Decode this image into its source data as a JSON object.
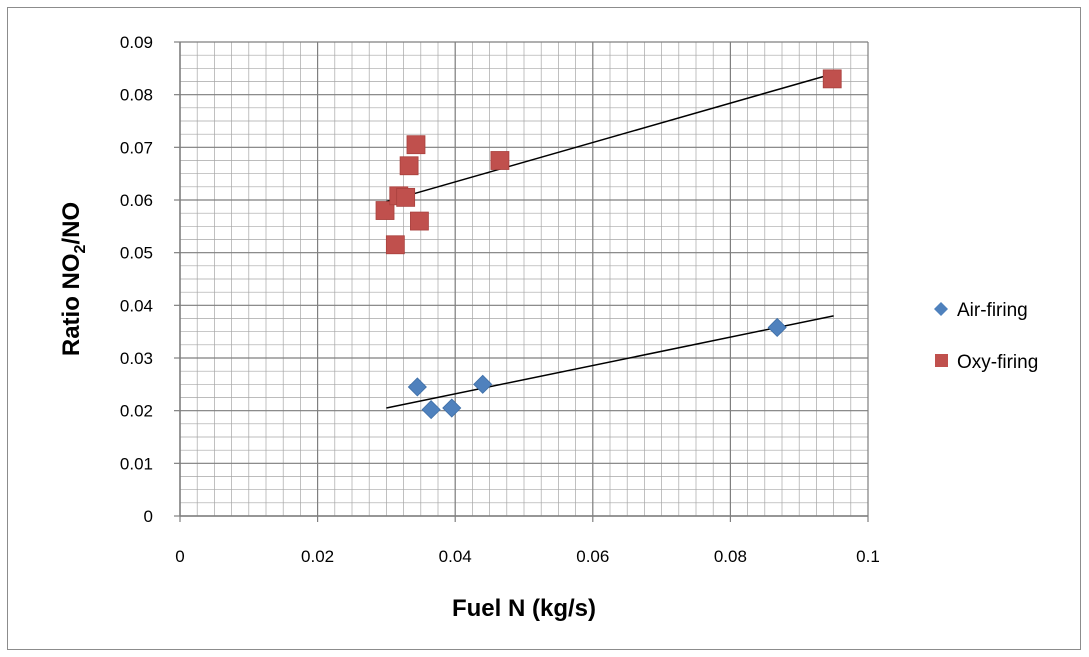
{
  "chart_data": {
    "type": "scatter",
    "xlabel": "Fuel N (kg/s)",
    "ylabel": {
      "prefix": "Ratio NO",
      "sub": "2",
      "suffix": "/NO"
    },
    "xlim": [
      0,
      0.1
    ],
    "ylim": [
      0,
      0.09
    ],
    "x_ticks": [
      "0",
      "0.02",
      "0.04",
      "0.06",
      "0.08",
      "0.1"
    ],
    "y_ticks": [
      "0",
      "0.01",
      "0.02",
      "0.03",
      "0.04",
      "0.05",
      "0.06",
      "0.07",
      "0.08",
      "0.09"
    ],
    "grid": true,
    "legend_position": "right",
    "series": [
      {
        "name": "Air-firing",
        "marker": "diamond",
        "color": "#4f81bd",
        "points": [
          [
            0.0345,
            0.0245
          ],
          [
            0.0365,
            0.0202
          ],
          [
            0.0395,
            0.0205
          ],
          [
            0.044,
            0.025
          ],
          [
            0.0868,
            0.0358
          ]
        ],
        "trendline": [
          [
            0.03,
            0.0205
          ],
          [
            0.095,
            0.038
          ]
        ]
      },
      {
        "name": "Oxy-firing",
        "marker": "square",
        "color": "#c0504d",
        "points": [
          [
            0.0298,
            0.058
          ],
          [
            0.0313,
            0.0515
          ],
          [
            0.0318,
            0.0608
          ],
          [
            0.0328,
            0.0605
          ],
          [
            0.0333,
            0.0665
          ],
          [
            0.0343,
            0.0705
          ],
          [
            0.0348,
            0.056
          ],
          [
            0.0465,
            0.0675
          ],
          [
            0.0948,
            0.083
          ]
        ],
        "trendline": [
          [
            0.03,
            0.0597
          ],
          [
            0.095,
            0.084
          ]
        ]
      }
    ]
  }
}
